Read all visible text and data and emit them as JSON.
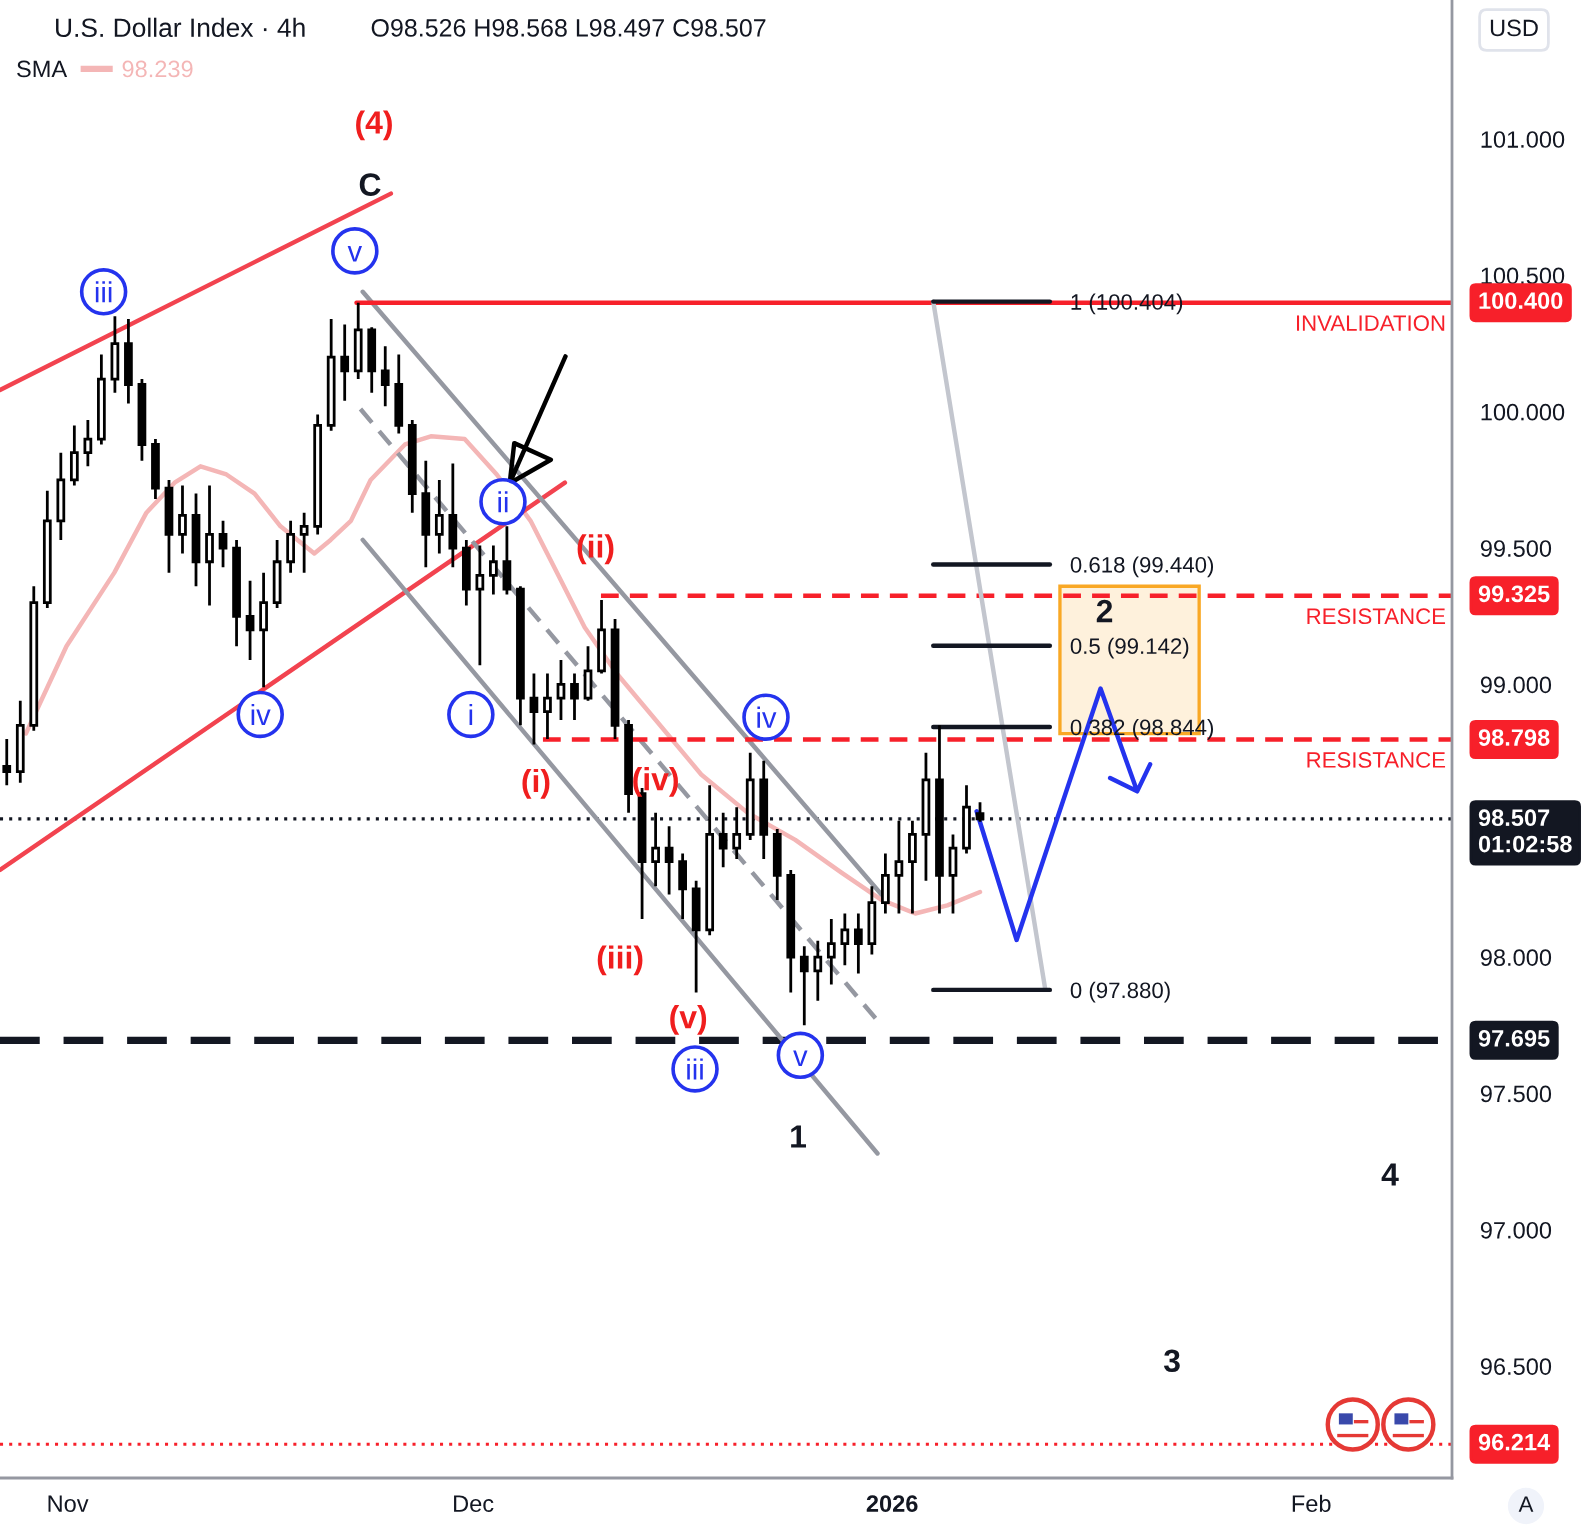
{
  "chart_data": {
    "type": "candlestick",
    "title": "U.S. Dollar Index · 4h",
    "subtitle": "O98.526 H98.568 L98.497 C98.507",
    "ylabel": "USD",
    "color": "#000000",
    "x": [
      "2025-10-27T12:00",
      "2025-10-28T12:00",
      "2025-10-29T12:00",
      "2025-10-30T12:00",
      "2025-10-31T12:00",
      "2025-11-01T12:00",
      "2025-11-02T12:00",
      "2025-11-03T12:00",
      "2025-11-04T12:00",
      "2025-11-05T12:00",
      "2025-11-06T12:00",
      "2025-11-07T12:00",
      "2025-11-08T12:00",
      "2025-11-09T12:00",
      "2025-11-10T12:00",
      "2025-11-11T12:00",
      "2025-11-12T12:00",
      "2025-11-13T12:00",
      "2025-11-14T12:00",
      "2025-11-15T12:00",
      "2025-11-16T12:00",
      "2025-11-17T12:00",
      "2025-11-18T12:00",
      "2025-11-19T12:00",
      "2025-11-20T12:00",
      "2025-11-21T12:00",
      "2025-11-22T12:00",
      "2025-11-23T12:00",
      "2025-11-24T12:00",
      "2025-11-25T12:00",
      "2025-11-26T12:00",
      "2025-11-27T12:00",
      "2025-11-28T12:00",
      "2025-11-29T12:00",
      "2025-11-30T12:00",
      "2025-12-01T12:00",
      "2025-12-02T12:00",
      "2025-12-03T12:00",
      "2025-12-04T12:00",
      "2025-12-05T12:00",
      "2025-12-06T12:00",
      "2025-12-07T12:00",
      "2025-12-08T12:00",
      "2025-12-09T12:00",
      "2025-12-10T12:00",
      "2025-12-11T12:00",
      "2025-12-12T12:00",
      "2025-12-13T12:00",
      "2025-12-14T12:00",
      "2025-12-15T12:00",
      "2025-12-16T12:00",
      "2025-12-17T12:00",
      "2025-12-18T12:00",
      "2025-12-19T12:00",
      "2025-12-20T12:00",
      "2025-12-21T12:00",
      "2025-12-22T12:00",
      "2025-12-23T12:00",
      "2025-12-24T12:00",
      "2025-12-25T12:00",
      "2025-12-26T12:00",
      "2025-12-27T12:00",
      "2025-12-28T12:00",
      "2025-12-29T12:00",
      "2025-12-30T12:00",
      "2025-12-31T12:00",
      "2026-01-01T12:00",
      "2026-01-02T12:00",
      "2026-01-03T12:00",
      "2026-01-04T12:00",
      "2026-01-05T12:00",
      "2026-01-06T12:00",
      "2026-01-07T12:00"
    ],
    "ohlc": [
      [
        98.7,
        98.8,
        98.63,
        98.68
      ],
      [
        98.68,
        98.94,
        98.64,
        98.85
      ],
      [
        98.85,
        99.36,
        98.83,
        99.3
      ],
      [
        99.3,
        99.71,
        99.28,
        99.6
      ],
      [
        99.6,
        99.85,
        99.53,
        99.75
      ],
      [
        99.75,
        99.95,
        99.73,
        99.85
      ],
      [
        99.85,
        99.97,
        99.8,
        99.9
      ],
      [
        99.9,
        100.21,
        99.88,
        100.12
      ],
      [
        100.12,
        100.35,
        100.07,
        100.25
      ],
      [
        100.25,
        100.34,
        100.03,
        100.1
      ],
      [
        100.1,
        100.12,
        99.82,
        99.88
      ],
      [
        99.88,
        99.9,
        99.68,
        99.72
      ],
      [
        99.72,
        99.75,
        99.41,
        99.55
      ],
      [
        99.55,
        99.73,
        99.48,
        99.62
      ],
      [
        99.62,
        99.7,
        99.36,
        99.45
      ],
      [
        99.45,
        99.73,
        99.29,
        99.55
      ],
      [
        99.55,
        99.6,
        99.43,
        99.5
      ],
      [
        99.5,
        99.53,
        99.14,
        99.25
      ],
      [
        99.25,
        99.38,
        99.09,
        99.2
      ],
      [
        99.2,
        99.41,
        98.99,
        99.3
      ],
      [
        99.3,
        99.53,
        99.28,
        99.45
      ],
      [
        99.45,
        99.6,
        99.41,
        99.55
      ],
      [
        99.55,
        99.63,
        99.41,
        99.58
      ],
      [
        99.58,
        99.99,
        99.55,
        99.95
      ],
      [
        99.95,
        100.34,
        99.93,
        100.2
      ],
      [
        100.2,
        100.32,
        100.04,
        100.15
      ],
      [
        100.15,
        100.4,
        100.12,
        100.3
      ],
      [
        100.3,
        100.31,
        100.07,
        100.15
      ],
      [
        100.15,
        100.24,
        100.02,
        100.1
      ],
      [
        100.1,
        100.21,
        99.92,
        99.95
      ],
      [
        99.95,
        99.97,
        99.63,
        99.7
      ],
      [
        99.7,
        99.82,
        99.43,
        99.55
      ],
      [
        99.55,
        99.75,
        99.48,
        99.62
      ],
      [
        99.62,
        99.81,
        99.43,
        99.5
      ],
      [
        99.5,
        99.53,
        99.29,
        99.35
      ],
      [
        99.35,
        99.51,
        99.07,
        99.4
      ],
      [
        99.4,
        99.51,
        99.33,
        99.45
      ],
      [
        99.45,
        99.58,
        99.33,
        99.35
      ],
      [
        99.35,
        99.36,
        98.85,
        98.95
      ],
      [
        98.95,
        99.04,
        98.78,
        98.9
      ],
      [
        98.9,
        99.04,
        98.8,
        98.95
      ],
      [
        98.95,
        99.09,
        98.87,
        99.0
      ],
      [
        99.0,
        99.04,
        98.87,
        98.95
      ],
      [
        98.95,
        99.14,
        98.94,
        99.05
      ],
      [
        99.05,
        99.31,
        99.04,
        99.2
      ],
      [
        99.2,
        99.24,
        98.8,
        98.85
      ],
      [
        98.85,
        98.87,
        98.53,
        98.6
      ],
      [
        98.6,
        98.62,
        98.14,
        98.35
      ],
      [
        98.35,
        98.53,
        98.26,
        98.4
      ],
      [
        98.4,
        98.48,
        98.23,
        98.35
      ],
      [
        98.35,
        98.38,
        98.14,
        98.25
      ],
      [
        98.25,
        98.28,
        97.87,
        98.1
      ],
      [
        98.1,
        98.63,
        98.08,
        98.45
      ],
      [
        98.45,
        98.53,
        98.33,
        98.4
      ],
      [
        98.4,
        98.55,
        98.36,
        98.45
      ],
      [
        98.45,
        98.75,
        98.43,
        98.65
      ],
      [
        98.65,
        98.72,
        98.36,
        98.45
      ],
      [
        98.45,
        98.47,
        98.21,
        98.3
      ],
      [
        98.3,
        98.32,
        97.87,
        98.0
      ],
      [
        98.0,
        98.04,
        97.75,
        97.95
      ],
      [
        97.95,
        98.06,
        97.84,
        98.0
      ],
      [
        98.0,
        98.14,
        97.9,
        98.05
      ],
      [
        98.05,
        98.16,
        97.97,
        98.1
      ],
      [
        98.1,
        98.16,
        97.94,
        98.05
      ],
      [
        98.05,
        98.26,
        98.01,
        98.2
      ],
      [
        98.2,
        98.38,
        98.16,
        98.3
      ],
      [
        98.3,
        98.5,
        98.16,
        98.35
      ],
      [
        98.35,
        98.5,
        98.16,
        98.45
      ],
      [
        98.45,
        98.75,
        98.28,
        98.65
      ],
      [
        98.65,
        98.85,
        98.16,
        98.3
      ],
      [
        98.3,
        98.45,
        98.16,
        98.4
      ],
      [
        98.4,
        98.63,
        98.38,
        98.55
      ],
      [
        98.526,
        98.568,
        98.497,
        98.507
      ]
    ],
    "series": [
      {
        "type": "line",
        "name": "98.239",
        "color": "#f4b6b6",
        "x": [
          "2025-10-28T22:00",
          "2025-10-31T22:00",
          "2025-11-04T11:00",
          "2025-11-06T20:00",
          "2025-11-08T22:00",
          "2025-11-10T20:00",
          "2025-11-12T18:00",
          "2025-11-14T20:00",
          "2025-11-16T18:00",
          "2025-11-19T06:00",
          "2025-11-20T11:00",
          "2025-11-21T23:00",
          "2025-11-23T10:00",
          "2025-11-25T23:00",
          "2025-11-27T21:00",
          "2025-11-30T09:00",
          "2025-12-02T18:00",
          "2025-12-05T06:00",
          "2025-12-07T05:00",
          "2025-12-09T06:00",
          "2025-12-11T15:00",
          "2025-12-14T04:00",
          "2025-12-17T21:00",
          "2025-12-21T07:00",
          "2025-12-24T20:00",
          "2025-12-28T06:00",
          "2025-12-31T05:00",
          "2026-01-02T17:00",
          "2026-01-05T02:00",
          "2026-01-07T12:00"
        ],
        "values": [
          98.82,
          99.14,
          99.41,
          99.63,
          99.74,
          99.8,
          99.77,
          99.7,
          99.58,
          99.48,
          99.53,
          99.6,
          99.75,
          99.88,
          99.91,
          99.9,
          99.77,
          99.6,
          99.41,
          99.21,
          99.04,
          98.89,
          98.67,
          98.53,
          98.43,
          98.31,
          98.21,
          98.16,
          98.19,
          98.239
        ]
      },
      {
        "type": "line",
        "color": "#f2434f",
        "x": [
          "2025-10-27T00:00",
          "2025-11-24T22:00"
        ],
        "values": [
          100.08,
          100.8
        ]
      },
      {
        "type": "line",
        "color": "#f2434f",
        "x": [
          "2025-10-27T00:00",
          "2025-12-07T19:00"
        ],
        "values": [
          98.32,
          99.74
        ]
      },
      {
        "type": "line",
        "color": "#9598a1",
        "x": [
          "2025-11-22T20:00",
          "2025-12-31T05:00"
        ],
        "values": [
          100.44,
          98.23
        ]
      },
      {
        "type": "line",
        "color": "#9598a1",
        "x": [
          "2025-11-22T20:00",
          "2025-12-30T22:00"
        ],
        "values": [
          99.53,
          97.28
        ]
      },
      {
        "type": "line",
        "color": "#9598a1",
        "line_style": "dashed",
        "x": [
          "2025-11-22T16:00",
          "2025-12-31T05:00"
        ],
        "values": [
          100.01,
          97.75
        ]
      },
      {
        "type": "line",
        "name": "INVALIDATION",
        "color": "#f7202a",
        "x": [
          "2025-11-22T09:00",
          "2026-02-11T10:00"
        ],
        "values": [
          100.4,
          100.4
        ],
        "value_labels": [
          null,
          "100.400"
        ]
      },
      {
        "type": "line",
        "name": "RESISTANCE",
        "color": "#f7202a",
        "line_style": "dashed",
        "x": [
          "2025-12-10T11:00",
          "2026-02-11T10:00"
        ],
        "values": [
          99.325,
          99.325
        ],
        "value_labels": [
          null,
          "99.325"
        ]
      },
      {
        "type": "line",
        "name": "RESISTANCE",
        "color": "#f7202a",
        "line_style": "dashed",
        "x": [
          "2025-12-06T04:00",
          "2026-02-11T10:00"
        ],
        "values": [
          98.798,
          98.798
        ],
        "value_labels": [
          null,
          "98.798"
        ]
      },
      {
        "type": "bar",
        "color": "#f9a825",
        "x": [
          "2026-01-18T13:30"
        ],
        "base": [
          98.82
        ],
        "values": [
          0.54
        ]
      },
      {
        "type": "line",
        "color": "#c3c6ce",
        "x": [
          "2026-01-04T01:00",
          "2026-01-12T08:00"
        ],
        "values": [
          100.404,
          97.88
        ]
      },
      {
        "type": "line",
        "name": "1 (100.404)",
        "color": "#131722",
        "x": [
          "2026-01-04T01:00",
          "2026-01-12T16:00"
        ],
        "values": [
          100.404,
          100.404
        ]
      },
      {
        "type": "line",
        "name": "0.618 (99.440)",
        "color": "#131722",
        "x": [
          "2026-01-04T01:00",
          "2026-01-12T16:00"
        ],
        "values": [
          99.44,
          99.44
        ]
      },
      {
        "type": "line",
        "name": "0.5 (99.142)",
        "color": "#131722",
        "x": [
          "2026-01-04T01:00",
          "2026-01-12T16:00"
        ],
        "values": [
          99.142,
          99.142
        ]
      },
      {
        "type": "line",
        "name": "0.382 (98.844)",
        "color": "#131722",
        "x": [
          "2026-01-04T01:00",
          "2026-01-12T16:00"
        ],
        "values": [
          98.844,
          98.844
        ]
      },
      {
        "type": "line",
        "name": "0 (97.880)",
        "color": "#131722",
        "x": [
          "2026-01-04T01:00",
          "2026-01-12T16:00"
        ],
        "values": [
          97.88,
          97.88
        ]
      },
      {
        "type": "line",
        "color": "#2433ee",
        "x": [
          "2026-01-07T06:00",
          "2026-01-10T05:00",
          "2026-01-16T10:00",
          "2026-01-19T03:00",
          "2026-01-17T03:00",
          "2026-01-19T03:00",
          "2026-01-20T02:00"
        ],
        "values": [
          98.535,
          98.063,
          98.985,
          98.608,
          98.657,
          98.608,
          98.707
        ]
      },
      {
        "type": "line",
        "color": "#000000",
        "x": [
          "2025-12-07T20:00",
          "2025-12-03T17:00",
          "2025-12-04T01:00",
          "2025-12-06T18:00",
          "2025-12-03T17:00"
        ],
        "values": [
          100.203,
          99.738,
          99.885,
          99.824,
          99.738
        ]
      },
      {
        "type": "scatter",
        "marker": "circle",
        "color": "#2433ee",
        "x": [
          "2025-11-03T16:00",
          "2025-11-22T06:00",
          "2025-11-15T06:00",
          "2025-12-03T05:00",
          "2025-11-30T20:00",
          "2025-12-22T16:00",
          "2025-12-17T10:00",
          "2025-12-25T05:00"
        ],
        "values": [
          100.44,
          100.59,
          98.89,
          99.67,
          98.89,
          98.88,
          97.59,
          97.64
        ]
      }
    ],
    "ref_lines": [
      {
        "axis": "y",
        "value": 98.507,
        "label": "98.507\n01:02:58",
        "color": "#131722",
        "line_style": "dotted"
      },
      {
        "axis": "y",
        "value": 97.695,
        "label": "97.695",
        "color": "#131722",
        "line_style": "dashed"
      },
      {
        "axis": "y",
        "value": 96.214,
        "label": "96.214",
        "color": "#f7202a",
        "line_style": "dotted"
      }
    ],
    "annotations": [
      {
        "text": "iii",
        "x": "2025-11-03T16:00",
        "y": 100.44
      },
      {
        "text": "v",
        "x": "2025-11-22T06:00",
        "y": 100.59
      },
      {
        "text": "iv",
        "x": "2025-11-15T06:00",
        "y": 98.89
      },
      {
        "text": "ii",
        "x": "2025-12-03T05:00",
        "y": 99.67
      },
      {
        "text": "i",
        "x": "2025-11-30T20:00",
        "y": 98.89
      },
      {
        "text": "iv",
        "x": "2025-12-22T16:00",
        "y": 98.88
      },
      {
        "text": "iii",
        "x": "2025-12-17T10:00",
        "y": 97.59
      },
      {
        "text": "v",
        "x": "2025-12-25T05:00",
        "y": 97.64
      },
      {
        "text": "(ii)",
        "x": "2025-12-10T12:00",
        "y": 99.31
      },
      {
        "text": "(i)",
        "x": "2025-12-05T12:00",
        "y": 98.78
      },
      {
        "text": "(iv)",
        "x": "2025-12-14T12:00",
        "y": 98.53
      },
      {
        "text": "(iii)",
        "x": "2025-12-13T12:00",
        "y": 98.14
      },
      {
        "text": "(v)",
        "x": "2025-12-17T12:00",
        "y": 97.87
      },
      {
        "text": "2",
        "x": "2026-01-16T10:00",
        "y": 98.985
      },
      {
        "text": "3",
        "x": "2026-01-21T17:00",
        "y": 96.214
      },
      "(4)",
      "C",
      "1",
      "4",
      "A"
    ],
    "xlim": [
      "2025-10-27T00:00",
      "2026-02-11T10:00"
    ],
    "ylim": [
      96.09,
      101.51
    ],
    "xticks": [
      {
        "value": "2025-11-01",
        "label": "Nov"
      },
      {
        "value": "2025-12-01",
        "label": "Dec"
      },
      {
        "value": "2026-01-01",
        "label": "2026"
      },
      {
        "value": "2026-02-01",
        "label": "Feb"
      }
    ],
    "yticks": [
      {
        "value": 96.5,
        "label": "96.500"
      },
      {
        "value": 97.0,
        "label": "97.000"
      },
      {
        "value": 97.5,
        "label": "97.500"
      },
      {
        "value": 98.0,
        "label": "98.000"
      },
      {
        "value": 99.0,
        "label": "99.000"
      },
      {
        "value": 99.5,
        "label": "99.500"
      },
      {
        "value": 100.0,
        "label": "100.000"
      },
      {
        "value": 100.5,
        "label": "100.500"
      },
      {
        "value": 101.0,
        "label": "101.000"
      }
    ],
    "legend": "top left",
    "legend_title": "SMA"
  }
}
